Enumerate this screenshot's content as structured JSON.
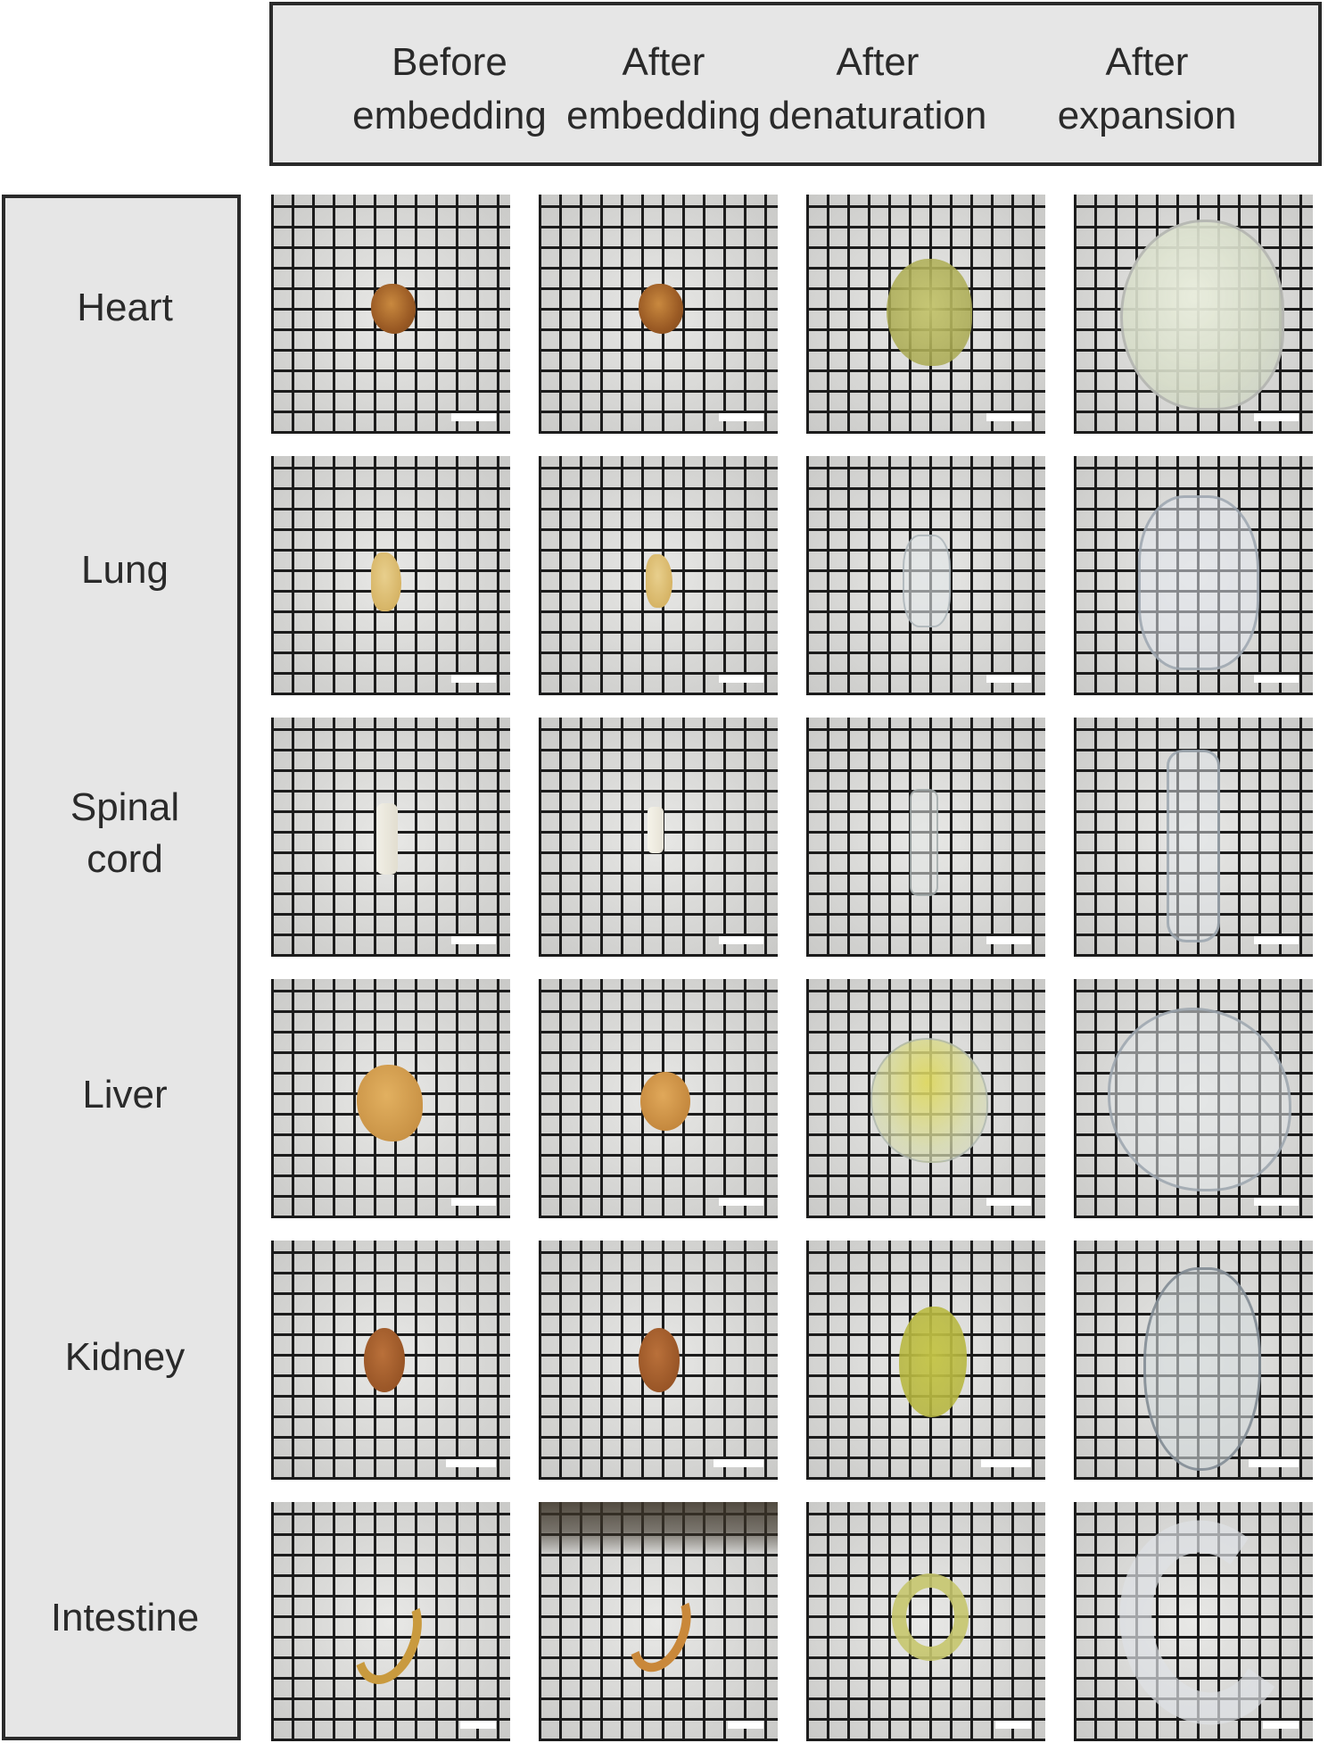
{
  "columns": [
    {
      "line1": "Before",
      "line2": "embedding"
    },
    {
      "line1": "After",
      "line2": "embedding"
    },
    {
      "line1": "After",
      "line2": "denaturation"
    },
    {
      "line1": "After",
      "line2": "expansion"
    }
  ],
  "rows": [
    {
      "line1": "Heart",
      "line2": ""
    },
    {
      "line1": "Lung",
      "line2": ""
    },
    {
      "line1": "Spinal",
      "line2": "cord"
    },
    {
      "line1": "Liver",
      "line2": ""
    },
    {
      "line1": "Kidney",
      "line2": ""
    },
    {
      "line1": "Intestine",
      "line2": ""
    }
  ]
}
